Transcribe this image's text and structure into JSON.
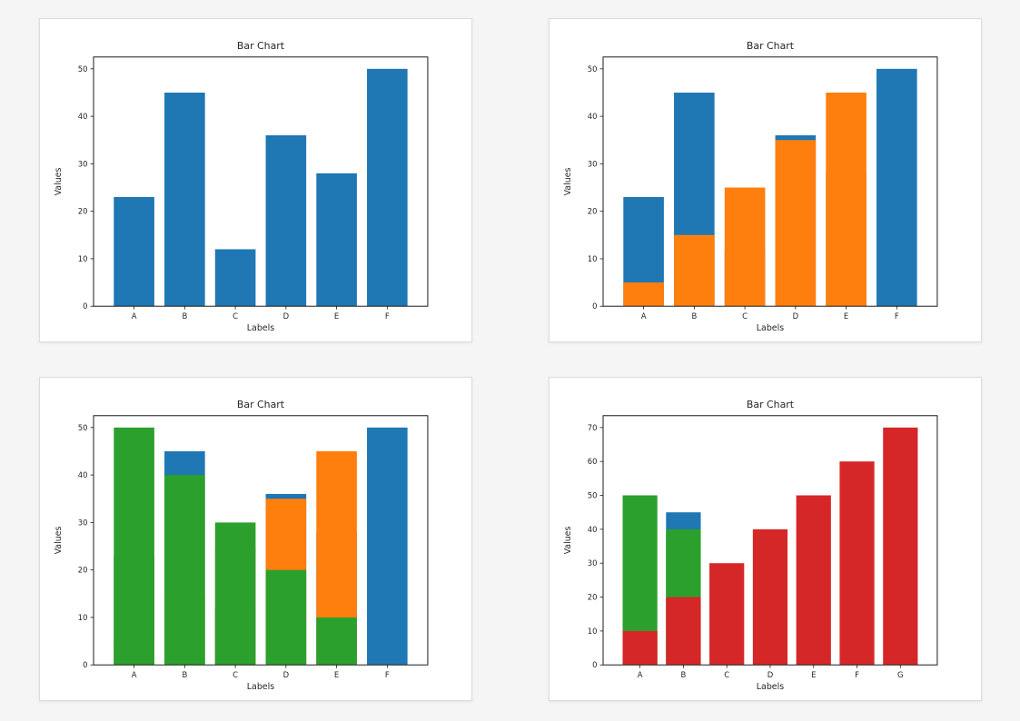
{
  "page": {
    "background_color": "#f5f5f6",
    "card_background": "#ffffff",
    "card_border_color": "#dcdcdc",
    "axis_color": "#1a1a1a",
    "text_color": "#262626"
  },
  "chart_data": [
    {
      "type": "bar",
      "title": "Bar Chart",
      "xlabel": "Labels",
      "ylabel": "Values",
      "categories": [
        "A",
        "B",
        "C",
        "D",
        "E",
        "F"
      ],
      "yticks": [
        0,
        10,
        20,
        30,
        40,
        50
      ],
      "ylim": [
        0,
        52.5
      ],
      "grid": false,
      "legend": null,
      "overlay": true,
      "series": [
        {
          "name": "blue",
          "color": "#1f77b4",
          "values": [
            23,
            45,
            12,
            36,
            28,
            50
          ]
        }
      ]
    },
    {
      "type": "bar",
      "title": "Bar Chart",
      "xlabel": "Labels",
      "ylabel": "Values",
      "categories": [
        "A",
        "B",
        "C",
        "D",
        "E",
        "F"
      ],
      "yticks": [
        0,
        10,
        20,
        30,
        40,
        50
      ],
      "ylim": [
        0,
        52.5
      ],
      "grid": false,
      "legend": null,
      "overlay": true,
      "series": [
        {
          "name": "blue",
          "color": "#1f77b4",
          "values": [
            23,
            45,
            12,
            36,
            28,
            50
          ]
        },
        {
          "name": "orange",
          "color": "#ff7f0e",
          "values": [
            5,
            15,
            25,
            35,
            45,
            0
          ]
        }
      ]
    },
    {
      "type": "bar",
      "title": "Bar Chart",
      "xlabel": "Labels",
      "ylabel": "Values",
      "categories": [
        "A",
        "B",
        "C",
        "D",
        "E",
        "F"
      ],
      "yticks": [
        0,
        10,
        20,
        30,
        40,
        50
      ],
      "ylim": [
        0,
        52.5
      ],
      "grid": false,
      "legend": null,
      "overlay": true,
      "series": [
        {
          "name": "blue",
          "color": "#1f77b4",
          "values": [
            23,
            45,
            12,
            36,
            28,
            50
          ]
        },
        {
          "name": "orange",
          "color": "#ff7f0e",
          "values": [
            5,
            15,
            25,
            35,
            45,
            0
          ]
        },
        {
          "name": "green",
          "color": "#2ca02c",
          "values": [
            50,
            40,
            30,
            20,
            10,
            0
          ]
        }
      ]
    },
    {
      "type": "bar",
      "title": "Bar Chart",
      "xlabel": "Labels",
      "ylabel": "Values",
      "categories": [
        "A",
        "B",
        "C",
        "D",
        "E",
        "F",
        "G"
      ],
      "yticks": [
        0,
        10,
        20,
        30,
        40,
        50,
        60,
        70
      ],
      "ylim": [
        0,
        73.5
      ],
      "grid": false,
      "legend": null,
      "overlay": true,
      "series": [
        {
          "name": "blue",
          "color": "#1f77b4",
          "values": [
            0,
            45,
            0,
            0,
            0,
            0,
            0
          ]
        },
        {
          "name": "green",
          "color": "#2ca02c",
          "values": [
            50,
            40,
            0,
            0,
            0,
            0,
            0
          ]
        },
        {
          "name": "red",
          "color": "#d62728",
          "values": [
            10,
            20,
            30,
            40,
            50,
            60,
            70
          ]
        }
      ]
    }
  ]
}
